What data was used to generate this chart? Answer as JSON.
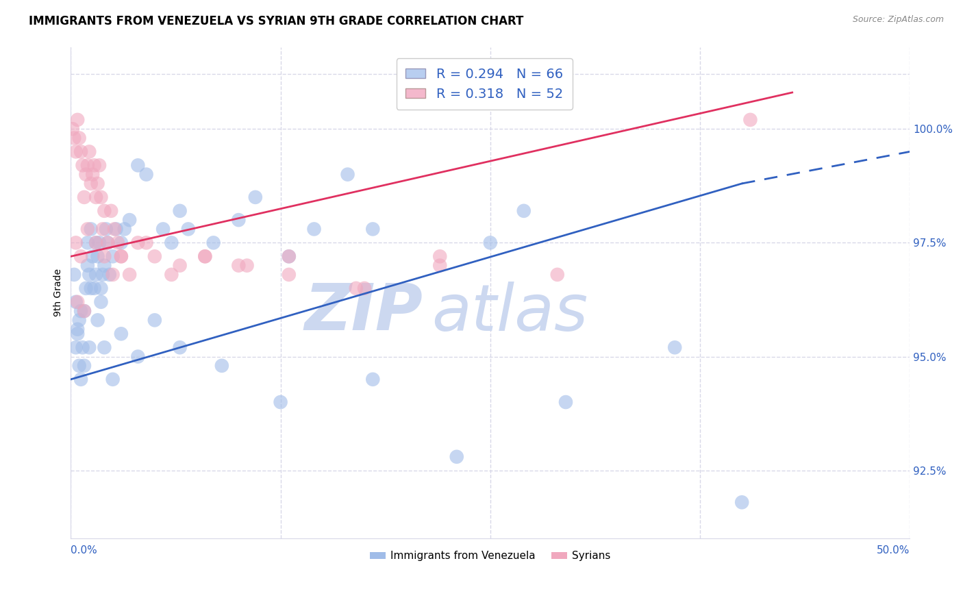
{
  "title": "IMMIGRANTS FROM VENEZUELA VS SYRIAN 9TH GRADE CORRELATION CHART",
  "source": "Source: ZipAtlas.com",
  "ylabel": "9th Grade",
  "xlim": [
    0.0,
    50.0
  ],
  "ylim": [
    91.0,
    101.8
  ],
  "yticks": [
    92.5,
    95.0,
    97.5,
    100.0
  ],
  "ytick_labels": [
    "92.5%",
    "95.0%",
    "97.5%",
    "100.0%"
  ],
  "blue_color": "#a0bce8",
  "pink_color": "#f0a8be",
  "blue_line_color": "#3060c0",
  "pink_line_color": "#e03060",
  "blue_line_x0": 0.0,
  "blue_line_y0": 94.5,
  "blue_line_x1": 40.0,
  "blue_line_y1": 98.8,
  "blue_dash_x0": 40.0,
  "blue_dash_y0": 98.8,
  "blue_dash_x1": 50.0,
  "blue_dash_y1": 99.5,
  "pink_line_x0": 0.0,
  "pink_line_y0": 97.2,
  "pink_line_x1": 43.0,
  "pink_line_y1": 100.8,
  "watermark": "ZIPatlas",
  "watermark_color": "#ccd8f0",
  "background_color": "#ffffff",
  "grid_color": "#d8d8e8",
  "title_fontsize": 12,
  "source_fontsize": 9,
  "legend_fontsize": 14,
  "tick_fontsize": 11,
  "blue_scatter_x": [
    0.2,
    0.3,
    0.3,
    0.4,
    0.5,
    0.5,
    0.6,
    0.7,
    0.8,
    0.9,
    1.0,
    1.0,
    1.1,
    1.2,
    1.2,
    1.3,
    1.4,
    1.5,
    1.5,
    1.6,
    1.7,
    1.8,
    1.9,
    2.0,
    2.1,
    2.2,
    2.3,
    2.5,
    2.7,
    3.0,
    3.2,
    3.5,
    4.0,
    4.5,
    5.5,
    6.0,
    6.5,
    7.0,
    8.5,
    10.0,
    11.0,
    13.0,
    14.5,
    16.5,
    18.0,
    25.0,
    27.0,
    0.4,
    0.8,
    1.1,
    1.6,
    2.0,
    2.5,
    3.0,
    4.0,
    5.0,
    6.5,
    9.0,
    12.5,
    18.0,
    23.0,
    29.5,
    36.0,
    40.0,
    0.6,
    1.8
  ],
  "blue_scatter_y": [
    96.8,
    96.2,
    95.2,
    95.6,
    95.8,
    94.8,
    94.5,
    95.2,
    96.0,
    96.5,
    97.0,
    97.5,
    96.8,
    96.5,
    97.8,
    97.2,
    96.5,
    97.5,
    96.8,
    97.2,
    97.5,
    96.2,
    96.8,
    97.0,
    97.8,
    97.5,
    96.8,
    97.2,
    97.8,
    97.5,
    97.8,
    98.0,
    99.2,
    99.0,
    97.8,
    97.5,
    98.2,
    97.8,
    97.5,
    98.0,
    98.5,
    97.2,
    97.8,
    99.0,
    97.8,
    97.5,
    98.2,
    95.5,
    94.8,
    95.2,
    95.8,
    95.2,
    94.5,
    95.5,
    95.0,
    95.8,
    95.2,
    94.8,
    94.0,
    94.5,
    92.8,
    94.0,
    95.2,
    91.8,
    96.0,
    96.5
  ],
  "pink_scatter_x": [
    0.1,
    0.2,
    0.3,
    0.4,
    0.5,
    0.6,
    0.7,
    0.8,
    0.9,
    1.0,
    1.1,
    1.2,
    1.3,
    1.4,
    1.5,
    1.6,
    1.7,
    1.8,
    1.9,
    2.0,
    2.2,
    2.4,
    2.6,
    2.8,
    3.0,
    3.5,
    4.0,
    5.0,
    6.5,
    8.0,
    10.5,
    13.0,
    17.0,
    22.0,
    0.3,
    0.6,
    1.0,
    1.5,
    2.0,
    2.5,
    3.0,
    4.5,
    6.0,
    8.0,
    10.0,
    13.0,
    17.5,
    22.0,
    29.0,
    40.5,
    0.4,
    0.8
  ],
  "pink_scatter_y": [
    100.0,
    99.8,
    99.5,
    100.2,
    99.8,
    99.5,
    99.2,
    98.5,
    99.0,
    99.2,
    99.5,
    98.8,
    99.0,
    99.2,
    98.5,
    98.8,
    99.2,
    98.5,
    97.8,
    98.2,
    97.5,
    98.2,
    97.8,
    97.5,
    97.2,
    96.8,
    97.5,
    97.2,
    97.0,
    97.2,
    97.0,
    96.8,
    96.5,
    97.0,
    97.5,
    97.2,
    97.8,
    97.5,
    97.2,
    96.8,
    97.2,
    97.5,
    96.8,
    97.2,
    97.0,
    97.2,
    96.5,
    97.2,
    96.8,
    100.2,
    96.2,
    96.0
  ],
  "legend1_label": "R = 0.294   N = 66",
  "legend2_label": "R = 0.318   N = 52",
  "legend1_color": "#b8cef0",
  "legend2_color": "#f4b8cc"
}
